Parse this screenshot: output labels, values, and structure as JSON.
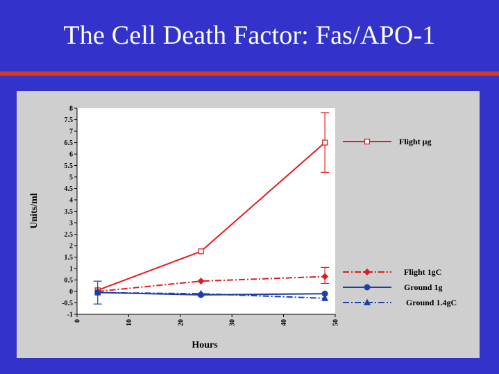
{
  "slide": {
    "title": "The Cell Death Factor:  Fas/APO-1",
    "background_color": "#3333cc",
    "rule_color": "#d83a1e",
    "panel_color": "#cfcfcf"
  },
  "chart_data": {
    "type": "line",
    "title": "",
    "xlabel": "Hours",
    "ylabel": "Units/ml",
    "xlim": [
      0,
      50
    ],
    "ylim": [
      -1,
      8
    ],
    "xticks": [
      0,
      10,
      20,
      30,
      40,
      50
    ],
    "yticks": [
      -1,
      -0.5,
      0,
      0.5,
      1,
      1.5,
      2,
      2.5,
      3,
      3.5,
      4,
      4.5,
      5,
      5.5,
      6,
      6.5,
      7,
      7.5,
      8
    ],
    "grid": false,
    "legend_position": "right",
    "series": [
      {
        "name": "Flight μg",
        "color": "#e31a1c",
        "line_style": "solid",
        "marker": "open-square",
        "x": [
          4,
          24,
          48
        ],
        "y": [
          0.05,
          1.75,
          6.5
        ],
        "error": [
          null,
          null,
          [
            5.2,
            7.8
          ]
        ]
      },
      {
        "name": "Flight 1gC",
        "color": "#e31a1c",
        "line_style": "dash-dot",
        "marker": "filled-diamond",
        "x": [
          4,
          24,
          48
        ],
        "y": [
          0.0,
          0.45,
          0.65
        ],
        "error": [
          null,
          null,
          [
            0.35,
            1.05
          ]
        ]
      },
      {
        "name": "Ground 1g",
        "color": "#1c3fa8",
        "line_style": "solid",
        "marker": "filled-circle",
        "x": [
          4,
          24,
          48
        ],
        "y": [
          -0.05,
          -0.15,
          -0.1
        ],
        "error": [
          [
            -0.55,
            0.45
          ],
          null,
          null
        ]
      },
      {
        "name": "Ground 1.4gC",
        "color": "#1c3fa8",
        "line_style": "dash-dot",
        "marker": "filled-triangle",
        "x": [
          4,
          24,
          48
        ],
        "y": [
          -0.05,
          -0.1,
          -0.3
        ],
        "error": [
          null,
          null,
          null
        ]
      }
    ]
  }
}
